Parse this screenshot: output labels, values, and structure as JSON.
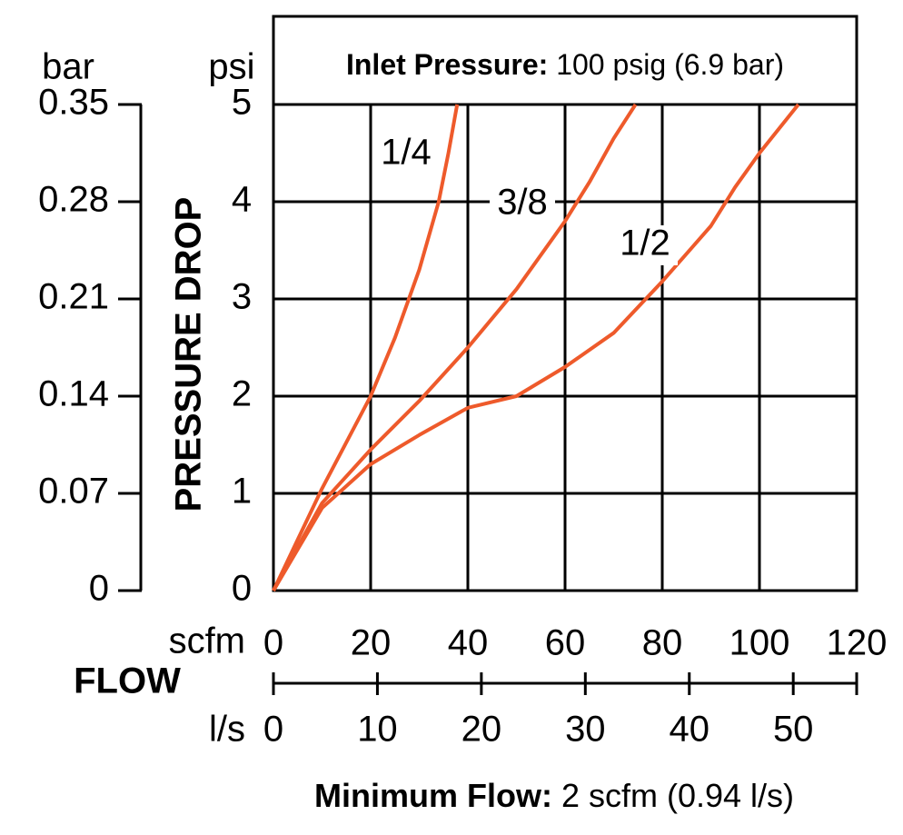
{
  "chart_data": {
    "type": "line",
    "title": {
      "label": "Inlet Pressure:",
      "text": "100 psig (6.9 bar)"
    },
    "subtitle": {
      "label": "Minimum Flow:",
      "text": "2 scfm (0.94 l/s)"
    },
    "y_title": "PRESSURE DROP",
    "y_unit": "psi",
    "y2_unit": "bar",
    "x_title": "FLOW",
    "x_unit": "scfm",
    "x2_unit": "l/s",
    "xlim": [
      0,
      120
    ],
    "xticks": [
      0,
      20,
      40,
      60,
      80,
      100,
      120
    ],
    "x2lim": [
      0,
      56.1
    ],
    "x2ticks": [
      0,
      10,
      20,
      30,
      40,
      50
    ],
    "ylim": [
      0,
      5
    ],
    "yticks": [
      0,
      1,
      2,
      3,
      4,
      5
    ],
    "y2lim": [
      0,
      0.35
    ],
    "y2ticks": [
      0,
      0.07,
      0.14,
      0.21,
      0.28,
      0.35
    ],
    "grid": true,
    "series": [
      {
        "name": "1/4",
        "color": "#ee5a2b",
        "x": [
          0,
          10,
          20,
          25,
          30,
          34,
          36,
          37.8
        ],
        "values": [
          0,
          1.05,
          2,
          2.6,
          3.3,
          4,
          4.5,
          5
        ]
      },
      {
        "name": "3/8",
        "color": "#ee5a2b",
        "x": [
          0,
          10,
          20,
          30,
          40,
          50,
          60,
          65,
          70,
          74.5
        ],
        "values": [
          0,
          0.9,
          1.45,
          1.95,
          2.5,
          3.1,
          3.8,
          4.2,
          4.65,
          5
        ]
      },
      {
        "name": "1/2",
        "color": "#ee5a2b",
        "x": [
          0,
          10,
          20,
          30,
          40,
          50,
          60,
          70,
          80,
          90,
          95,
          100,
          108
        ],
        "values": [
          0,
          0.85,
          1.3,
          1.6,
          1.88,
          2.0,
          2.3,
          2.65,
          3.18,
          3.75,
          4.15,
          4.5,
          5
        ]
      }
    ]
  }
}
